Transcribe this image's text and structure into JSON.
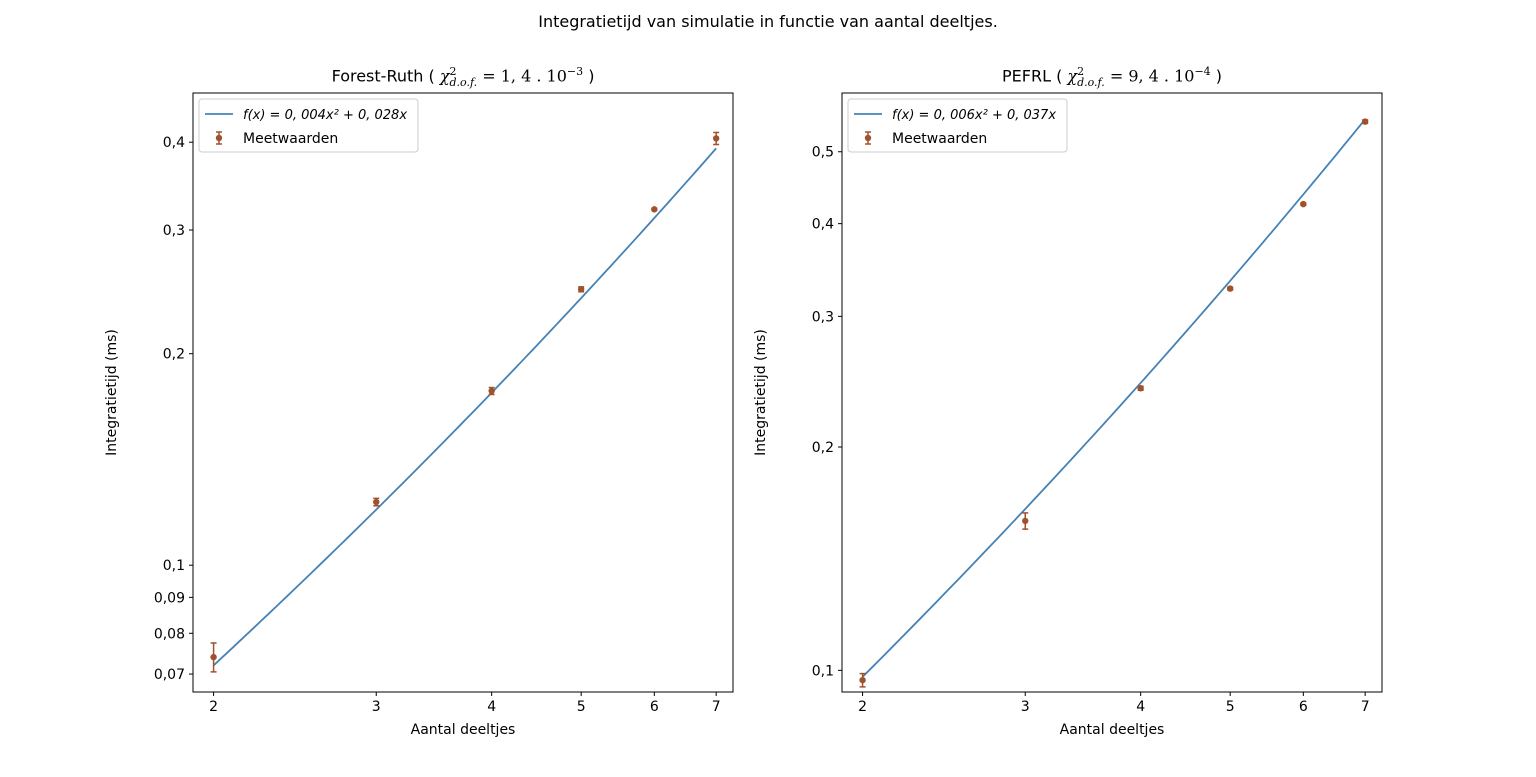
{
  "figure": {
    "title": "Integratietijd van simulatie in functie van aantal deeltjes."
  },
  "chart_data": [
    {
      "type": "scatter",
      "title": "Forest-Ruth ( χ²d.o.f. = 1,4 . 10⁻³ )",
      "title_prefix": "Forest-Ruth ( ",
      "chi_symbol": "χ",
      "chi_sup": "2",
      "chi_sub": "d.o.f.",
      "title_value": " = 1, 4 . 10",
      "title_exp": "−3",
      "title_suffix": " )",
      "xlabel": "Aantal deeltjes",
      "ylabel": "Integratietijd (ms)",
      "xscale": "log",
      "yscale": "log",
      "xlim": [
        1.9,
        7.3
      ],
      "ylim": [
        0.066,
        0.47
      ],
      "x_ticks": [
        2,
        3,
        4,
        5,
        6,
        7
      ],
      "x_tick_labels": [
        "2",
        "3",
        "4",
        "5",
        "6",
        "7"
      ],
      "y_ticks": [
        0.07,
        0.08,
        0.09,
        0.1,
        0.2,
        0.3,
        0.4
      ],
      "y_tick_labels": [
        "0,07",
        "0,08",
        "0,09",
        "0,1",
        "0,2",
        "0,3",
        "0,4"
      ],
      "legend_position": "top-left",
      "fit": {
        "name": "f(x) = 0, 004x² + 0, 028x",
        "a": 0.004,
        "b": 0.028,
        "color": "#4682b4"
      },
      "measurements": {
        "name": "Meetwaarden",
        "color": "#a0522d",
        "x": [
          2,
          3,
          4,
          5,
          6,
          7
        ],
        "y": [
          0.074,
          0.123,
          0.177,
          0.247,
          0.321,
          0.405
        ],
        "yerr": [
          0.0035,
          0.0015,
          0.002,
          0.002,
          0.001,
          0.008
        ]
      }
    },
    {
      "type": "scatter",
      "title": "PEFRL ( χ²d.o.f. = 9,4 . 10⁻⁴ )",
      "title_prefix": "PEFRL ( ",
      "chi_symbol": "χ",
      "chi_sup": "2",
      "chi_sub": "d.o.f.",
      "title_value": " = 9, 4 . 10",
      "title_exp": "−4",
      "title_suffix": " )",
      "xlabel": "Aantal deeltjes",
      "ylabel": "Integratietijd (ms)",
      "xscale": "log",
      "yscale": "log",
      "xlim": [
        1.9,
        7.3
      ],
      "ylim": [
        0.0935,
        0.6
      ],
      "x_ticks": [
        2,
        3,
        4,
        5,
        6,
        7
      ],
      "x_tick_labels": [
        "2",
        "3",
        "4",
        "5",
        "6",
        "7"
      ],
      "y_ticks": [
        0.1,
        0.2,
        0.3,
        0.4,
        0.5
      ],
      "y_tick_labels": [
        "0,1",
        "0,2",
        "0,3",
        "0,4",
        "0,5"
      ],
      "legend_position": "top-left",
      "fit": {
        "name": "f(x) = 0, 006x² + 0, 037x",
        "a": 0.006,
        "b": 0.037,
        "color": "#4682b4"
      },
      "measurements": {
        "name": "Meetwaarden",
        "color": "#a0522d",
        "x": [
          2,
          3,
          4,
          5,
          6,
          7
        ],
        "y": [
          0.097,
          0.159,
          0.24,
          0.327,
          0.425,
          0.549
        ],
        "yerr": [
          0.002,
          0.004,
          0.0015,
          0.0015,
          0.0015,
          0.003
        ]
      }
    }
  ]
}
